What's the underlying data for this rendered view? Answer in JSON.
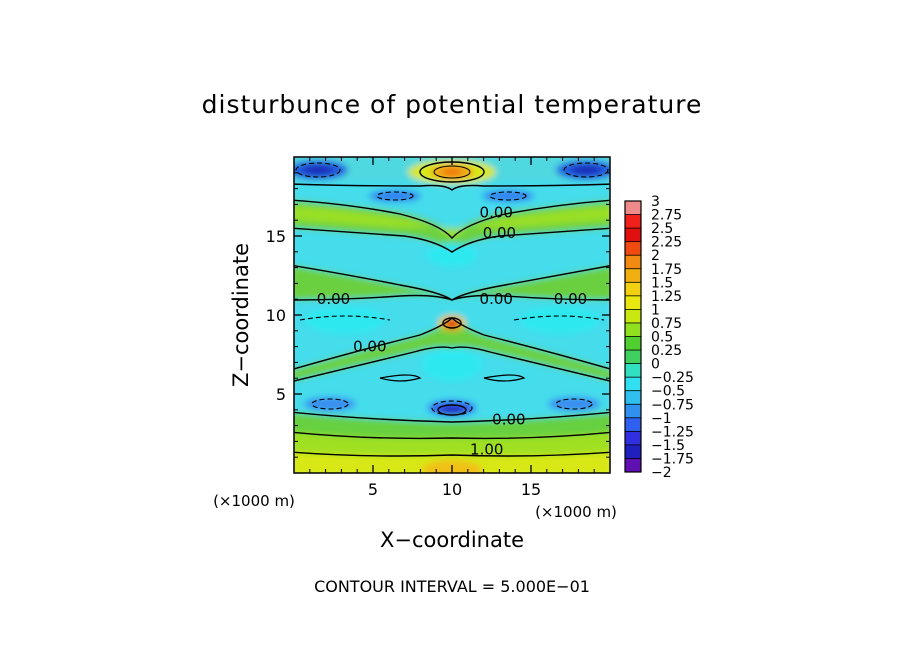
{
  "chart_data": {
    "type": "heatmap",
    "title": "disturbunce of potential temperature",
    "xlabel": "X−coordinate",
    "ylabel": "Z−coordinate",
    "x_unit": "(×1000 m)",
    "y_unit": "(×1000 m)",
    "xlim": [
      0,
      20
    ],
    "ylim": [
      0,
      20
    ],
    "x_ticks": [
      "5",
      "10",
      "15"
    ],
    "y_ticks": [
      "5",
      "10",
      "15"
    ],
    "footer": "CONTOUR INTERVAL = 5.000E−01",
    "colorbar": {
      "ticks": [
        "3",
        "2.75",
        "2.5",
        "2.25",
        "2",
        "1.75",
        "1.5",
        "1.25",
        "1",
        "0.75",
        "0.5",
        "0.25",
        "0",
        "−0.25",
        "−0.5",
        "−0.75",
        "−1",
        "−1.25",
        "−1.5",
        "−1.75",
        "−2"
      ],
      "range": [
        -2,
        3
      ],
      "colors": [
        "#ef8a8a",
        "#f0201a",
        "#e01010",
        "#f04a10",
        "#f08a10",
        "#f0b010",
        "#f0d010",
        "#e8e810",
        "#c8e810",
        "#90e020",
        "#50d030",
        "#40d060",
        "#30e0c0",
        "#30e0f0",
        "#30c0f0",
        "#3090f0",
        "#3060f0",
        "#3030e0",
        "#2020c0",
        "#6010b0"
      ]
    },
    "contour_labels": [
      {
        "text": "0.00",
        "x": 12.8,
        "z": 16.5
      },
      {
        "text": "0.00",
        "x": 13.0,
        "z": 15.2
      },
      {
        "text": "0.00",
        "x": 2.5,
        "z": 11.0
      },
      {
        "text": "0.00",
        "x": 12.8,
        "z": 11.0
      },
      {
        "text": "0.00",
        "x": 17.5,
        "z": 11.0
      },
      {
        "text": "0.00",
        "x": 4.8,
        "z": 8.0
      },
      {
        "text": "0.00",
        "x": 13.6,
        "z": 3.4
      },
      {
        "text": "1.00",
        "x": 12.2,
        "z": 1.5
      }
    ]
  }
}
